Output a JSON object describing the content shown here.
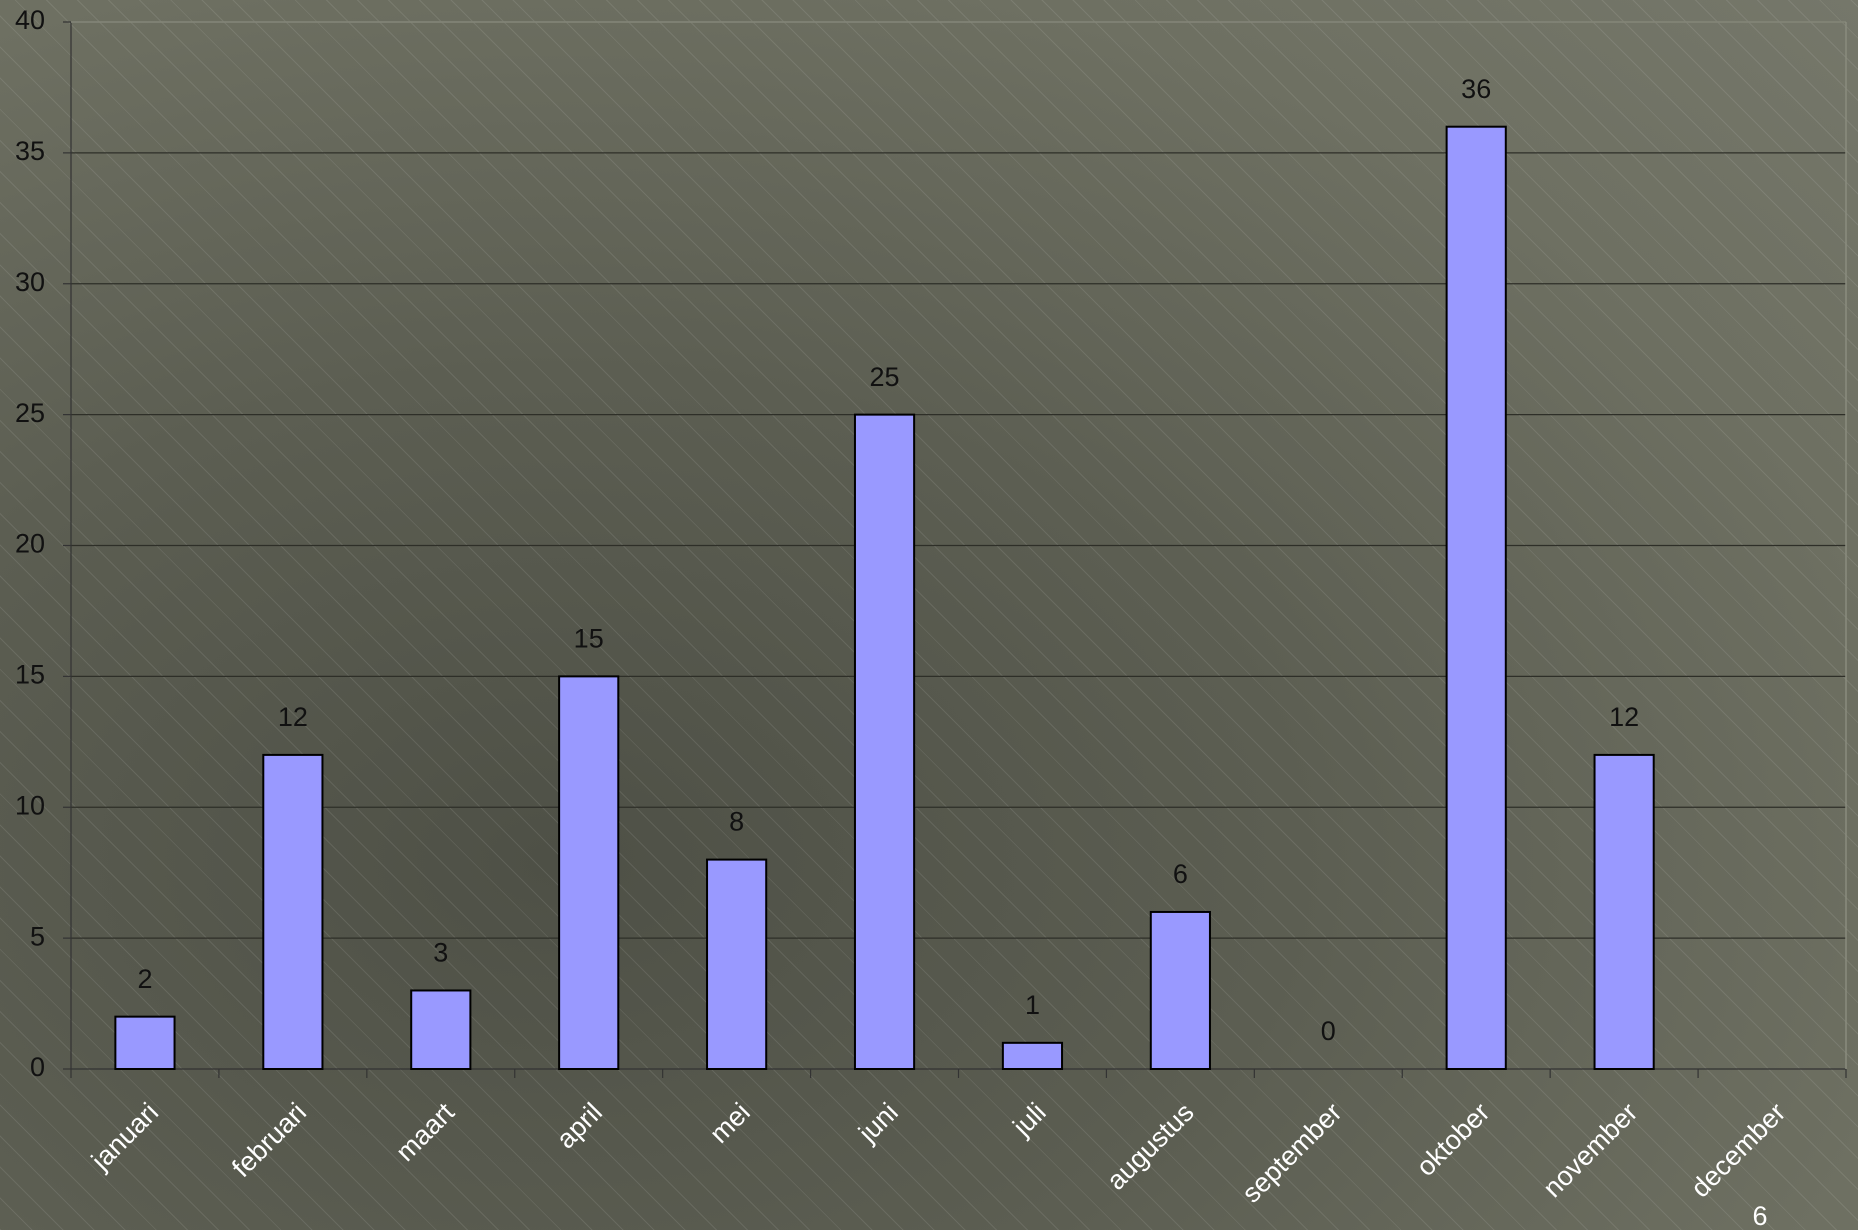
{
  "chart_data": {
    "type": "bar",
    "categories": [
      "januari",
      "februari",
      "maart",
      "april",
      "mei",
      "juni",
      "juli",
      "augustus",
      "september",
      "oktober",
      "november",
      "december"
    ],
    "values": [
      2,
      12,
      3,
      15,
      8,
      25,
      1,
      6,
      0,
      36,
      12,
      null
    ],
    "color": "#9999ff",
    "ylim": [
      0,
      40
    ],
    "yticks": [
      0,
      5,
      10,
      15,
      20,
      25,
      30,
      35,
      40
    ],
    "grid": true
  },
  "slide_number": "6"
}
